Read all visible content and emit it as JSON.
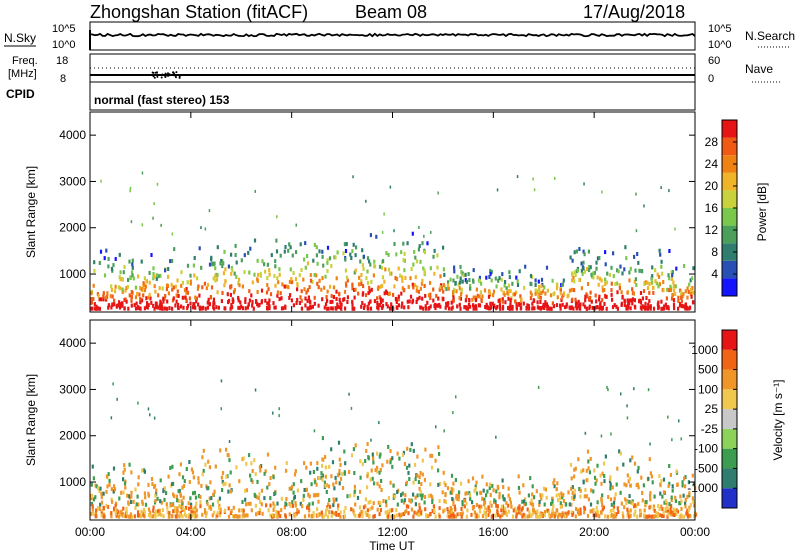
{
  "header": {
    "station": "Zhongshan Station (fitACF)",
    "beam": "Beam 08",
    "date": "17/Aug/2018"
  },
  "panels": {
    "nsky": {
      "left_label": "N.Sky",
      "ticks_left": [
        "10^5",
        "10^0"
      ],
      "ticks_right": [
        "10^5",
        "10^0"
      ],
      "right_label": "N.Search"
    },
    "freq": {
      "left_label_1": "Freq.",
      "left_label_2": "[MHz]",
      "ticks_left": [
        "18",
        "8"
      ],
      "ticks_right": [
        "60",
        "0"
      ],
      "right_label": "Nave"
    },
    "cpid": {
      "left_label": "CPID",
      "mode_text": "normal (fast stereo) 153"
    }
  },
  "chart_data": [
    {
      "type": "heatmap",
      "title": "",
      "xlabel": "",
      "ylabel": "Slant Range [km]",
      "xlim": [
        "00:00",
        "24:00"
      ],
      "ylim": [
        180,
        4500
      ],
      "yticks": [
        "1000",
        "2000",
        "3000",
        "4000"
      ],
      "grid": false,
      "colorbar": {
        "label": "Power [dB]",
        "ticks": [
          "28",
          "24",
          "20",
          "16",
          "12",
          "8",
          "4"
        ],
        "range": [
          0,
          30
        ],
        "colors": [
          "#1414ff",
          "#2850b4",
          "#2f7d6e",
          "#4aa05a",
          "#7ac84b",
          "#c8d23c",
          "#f0b428",
          "#f08214",
          "#f05a14",
          "#e61414"
        ]
      }
    },
    {
      "type": "heatmap",
      "title": "",
      "xlabel": "Time UT",
      "ylabel": "Slant Range [km]",
      "xlim": [
        "00:00",
        "24:00"
      ],
      "ylim": [
        180,
        4500
      ],
      "yticks": [
        "1000",
        "2000",
        "3000",
        "4000"
      ],
      "xticks": [
        "00:00",
        "04:00",
        "08:00",
        "12:00",
        "16:00",
        "20:00",
        "00:00"
      ],
      "grid": false,
      "colorbar": {
        "label": "Velocity [m s⁻¹]",
        "ticks": [
          "1000",
          "500",
          "100",
          "25",
          "-25",
          "-100",
          "-500",
          "-1000"
        ],
        "colors": [
          "#2030c8",
          "#2e7d6e",
          "#3c9c50",
          "#8cd25a",
          "#c8c8c8",
          "#f0c850",
          "#f09628",
          "#f06414",
          "#e61414"
        ]
      }
    }
  ]
}
